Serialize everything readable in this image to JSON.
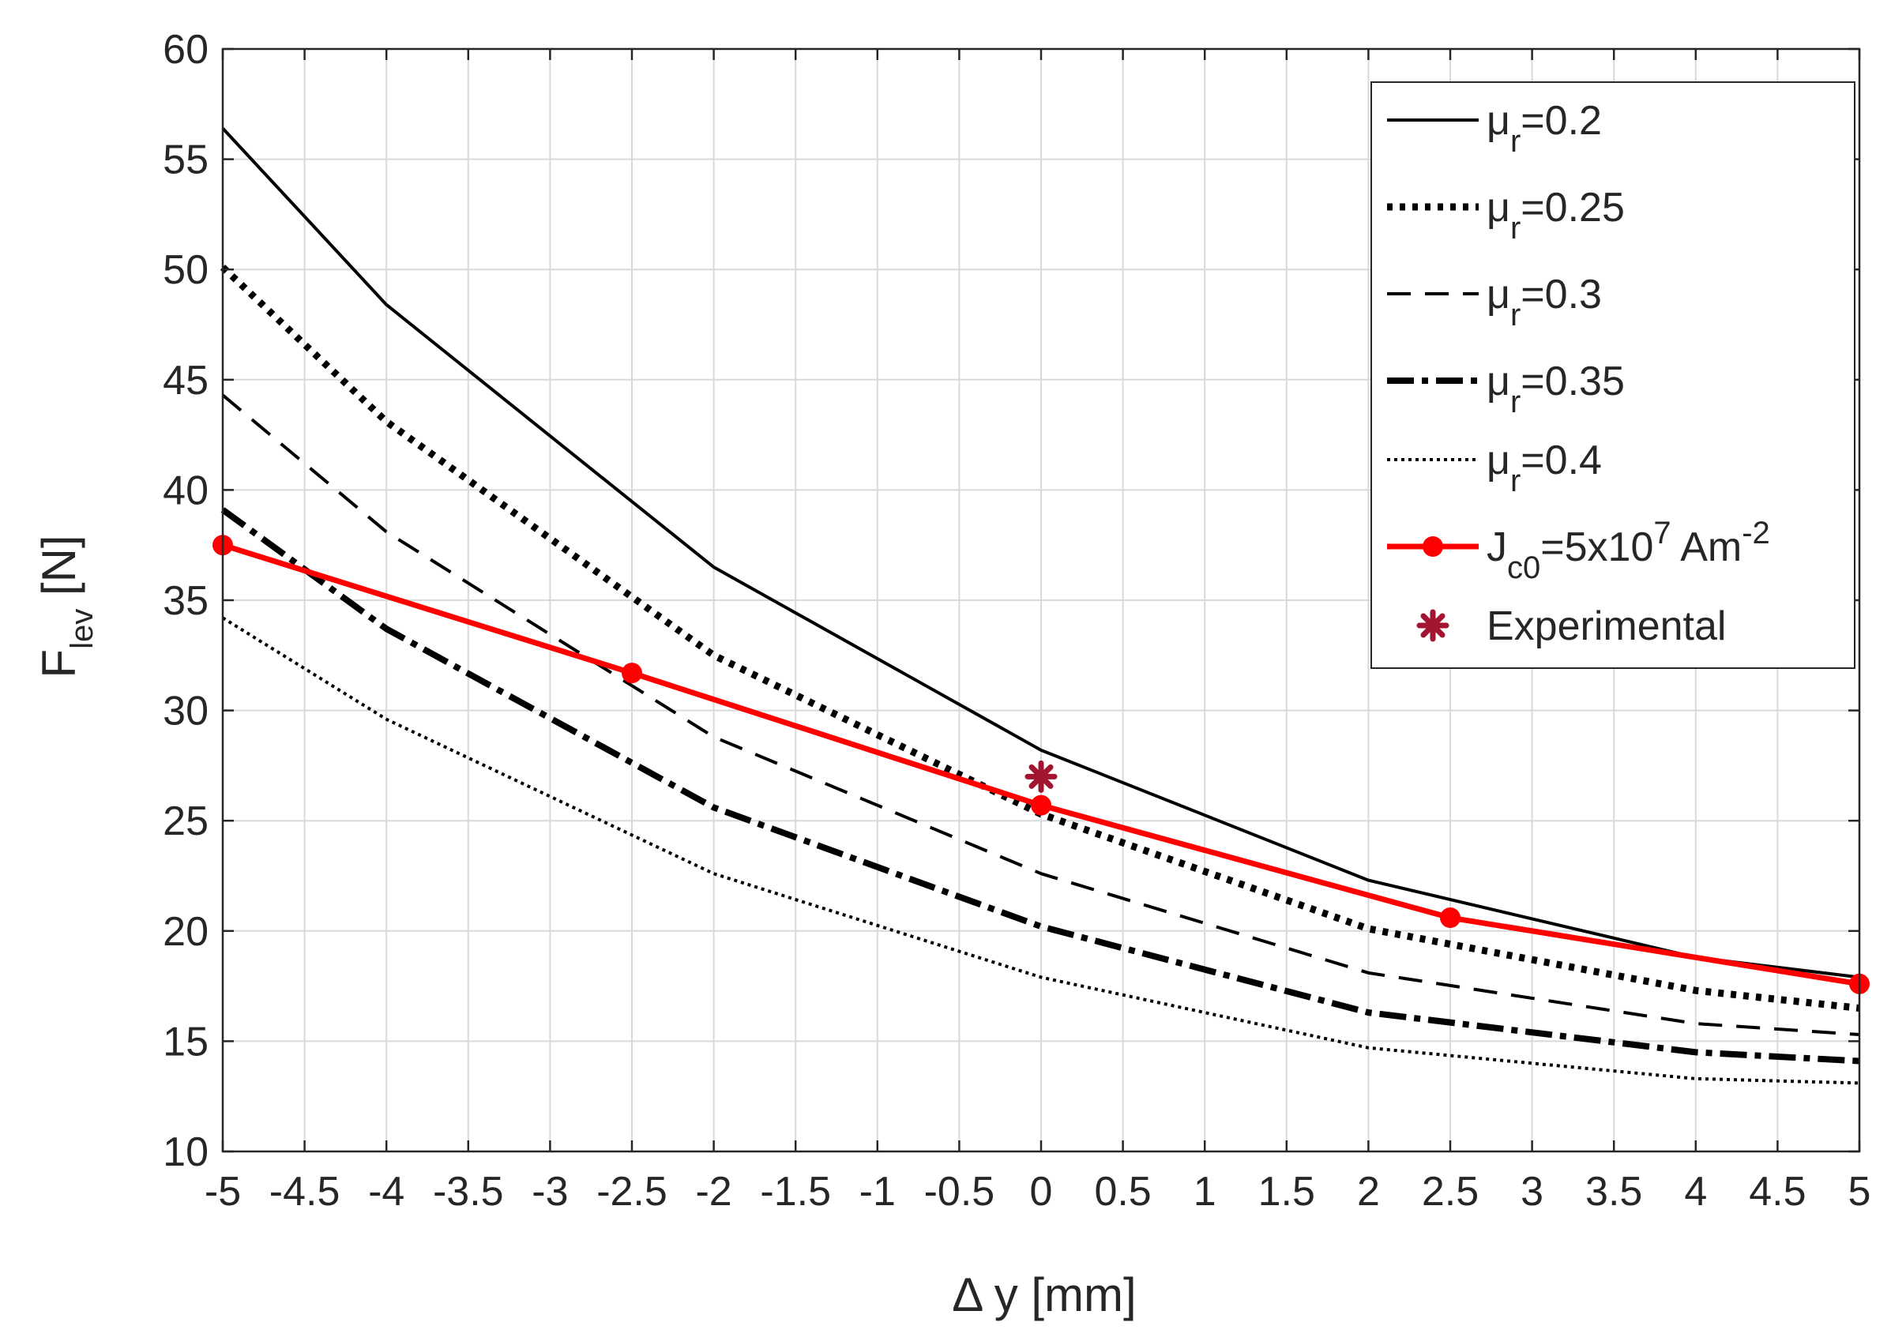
{
  "chart_data": {
    "type": "line",
    "title": "",
    "xlabel": "Δ y [mm]",
    "ylabel": {
      "main": "F",
      "sub": "lev",
      "unit": " [N]"
    },
    "xlim": [
      -5,
      5
    ],
    "ylim": [
      10,
      60
    ],
    "grid": true,
    "legend_position": "top-right",
    "x_ticks": [
      -5,
      -4.5,
      -4,
      -3.5,
      -3,
      -2.5,
      -2,
      -1.5,
      -1,
      -0.5,
      0,
      0.5,
      1,
      1.5,
      2,
      2.5,
      3,
      3.5,
      4,
      4.5,
      5
    ],
    "x_tick_labels": [
      "-5",
      "-4.5",
      "-4",
      "-3.5",
      "-3",
      "-2.5",
      "-2",
      "-1.5",
      "-1",
      "-0.5",
      "0",
      "0.5",
      "1",
      "1.5",
      "2",
      "2.5",
      "3",
      "3.5",
      "4",
      "4.5",
      "5"
    ],
    "y_ticks": [
      10,
      15,
      20,
      25,
      30,
      35,
      40,
      45,
      50,
      55,
      60
    ],
    "y_tick_labels": [
      "10",
      "15",
      "20",
      "25",
      "30",
      "35",
      "40",
      "45",
      "50",
      "55",
      "60"
    ],
    "series": [
      {
        "name": "μr=0.2",
        "label_main": "μ",
        "label_sub": "r",
        "label_rest": "=0.2",
        "style": "solid",
        "color": "#000000",
        "x": [
          -5,
          -4,
          -2,
          0,
          2,
          4,
          5
        ],
        "y": [
          56.4,
          48.4,
          36.5,
          28.2,
          22.3,
          18.8,
          17.9
        ]
      },
      {
        "name": "μr=0.25",
        "label_main": "μ",
        "label_sub": "r",
        "label_rest": "=0.25",
        "style": "dotted-thick",
        "color": "#000000",
        "x": [
          -5,
          -4,
          -2,
          0,
          2,
          4,
          5
        ],
        "y": [
          50.1,
          43.1,
          32.5,
          25.3,
          20.1,
          17.3,
          16.5
        ]
      },
      {
        "name": "μr=0.3",
        "label_main": "μ",
        "label_sub": "r",
        "label_rest": "=0.3",
        "style": "dashed",
        "color": "#000000",
        "x": [
          -5,
          -4,
          -2,
          0,
          2,
          4,
          5
        ],
        "y": [
          44.3,
          38.1,
          28.8,
          22.6,
          18.1,
          15.8,
          15.3
        ]
      },
      {
        "name": "μr=0.35",
        "label_main": "μ",
        "label_sub": "r",
        "label_rest": "=0.35",
        "style": "dash-dot-thick",
        "color": "#000000",
        "x": [
          -5,
          -4,
          -2,
          0,
          2,
          4,
          5
        ],
        "y": [
          39.1,
          33.7,
          25.6,
          20.2,
          16.3,
          14.5,
          14.1
        ]
      },
      {
        "name": "μr=0.4",
        "label_main": "μ",
        "label_sub": "r",
        "label_rest": "=0.4",
        "style": "dotted-thin",
        "color": "#000000",
        "x": [
          -5,
          -4,
          -2,
          0,
          2,
          4,
          5
        ],
        "y": [
          34.2,
          29.6,
          22.6,
          17.9,
          14.7,
          13.3,
          13.1
        ]
      },
      {
        "name": "Jc0=5x10^7 Am^-2",
        "label_main": "J",
        "label_sub": "c0",
        "label_rest": "=5x10",
        "label_sup1": "7",
        "label_rest2": " Am",
        "label_sup2": "-2",
        "style": "solid-marker",
        "color": "#ff0000",
        "x": [
          -5,
          -2.5,
          0,
          2.5,
          5
        ],
        "y": [
          37.5,
          31.7,
          25.7,
          20.6,
          17.6
        ]
      }
    ],
    "experimental": {
      "name": "Experimental",
      "label": "Experimental",
      "color": "#a2142f",
      "x": [
        0
      ],
      "y": [
        27.0
      ]
    }
  }
}
